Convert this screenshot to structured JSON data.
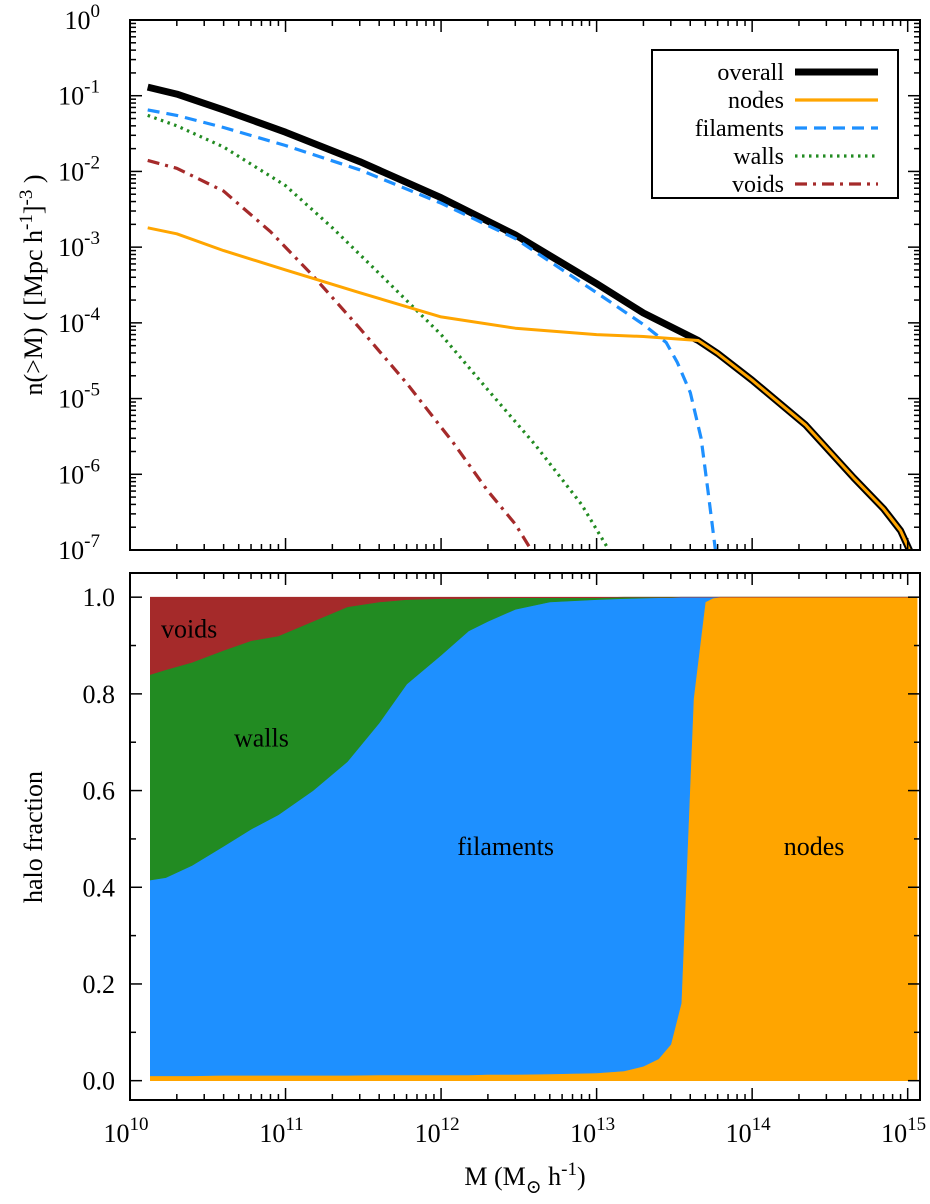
{
  "chart_data": [
    {
      "type": "line",
      "panel": "top",
      "xscale": "log",
      "yscale": "log",
      "xlim": [
        10000000000.0,
        1200000000000000.0
      ],
      "ylim": [
        1e-07,
        1
      ],
      "ylabel": {
        "main": "n(>M)  ( [Mpc h",
        "sup1": "-1",
        "mid": "]",
        "sup2": "-3",
        "end": " )"
      },
      "ytick_labels": [
        {
          "v": 1.0,
          "base": "10",
          "exp": "0"
        },
        {
          "v": 0.1,
          "base": "10",
          "exp": "-1"
        },
        {
          "v": 0.01,
          "base": "10",
          "exp": "-2"
        },
        {
          "v": 0.001,
          "base": "10",
          "exp": "-3"
        },
        {
          "v": 0.0001,
          "base": "10",
          "exp": "-4"
        },
        {
          "v": 1e-05,
          "base": "10",
          "exp": "-5"
        },
        {
          "v": 1e-06,
          "base": "10",
          "exp": "-6"
        },
        {
          "v": 1e-07,
          "base": "10",
          "exp": "-7"
        }
      ],
      "legend_position": "top-right",
      "series": [
        {
          "name": "overall",
          "color": "#000000",
          "dash": "solid",
          "x": [
            13000000000.0,
            20000000000.0,
            40000000000.0,
            100000000000.0,
            300000000000.0,
            1000000000000.0,
            3000000000000.0,
            10000000000000.0,
            20000000000000.0,
            45000000000000.0,
            60000000000000.0,
            100000000000000.0,
            220000000000000.0,
            450000000000000.0,
            700000000000000.0,
            900000000000000.0,
            1050000000000000.0
          ],
          "y": [
            0.13,
            0.105,
            0.065,
            0.033,
            0.0135,
            0.0045,
            0.00145,
            0.00033,
            0.000135,
            5.85e-05,
            3.95e-05,
            1.75e-05,
            4.5e-06,
            9e-07,
            3.5e-07,
            1.8e-07,
            9e-08
          ]
        },
        {
          "name": "nodes",
          "color": "#ffa500",
          "dash": "solid",
          "x": [
            13000000000.0,
            20000000000.0,
            40000000000.0,
            100000000000.0,
            300000000000.0,
            1000000000000.0,
            3000000000000.0,
            10000000000000.0,
            20000000000000.0,
            45000000000000.0,
            60000000000000.0,
            100000000000000.0,
            220000000000000.0,
            450000000000000.0,
            700000000000000.0,
            900000000000000.0,
            1050000000000000.0
          ],
          "y": [
            0.0018,
            0.0015,
            0.0009,
            0.0005,
            0.00025,
            0.00012,
            8.5e-05,
            7e-05,
            6.6e-05,
            5.85e-05,
            3.95e-05,
            1.75e-05,
            4.5e-06,
            9e-07,
            3.5e-07,
            1.8e-07,
            9e-08
          ]
        },
        {
          "name": "filaments",
          "color": "#1e90ff",
          "dash": "dashed",
          "x": [
            13000000000.0,
            20000000000.0,
            40000000000.0,
            100000000000.0,
            300000000000.0,
            1000000000000.0,
            3000000000000.0,
            10000000000000.0,
            20000000000000.0,
            28000000000000.0,
            33000000000000.0,
            40000000000000.0,
            47000000000000.0,
            52000000000000.0,
            58000000000000.0
          ],
          "y": [
            0.065,
            0.055,
            0.038,
            0.022,
            0.0105,
            0.0038,
            0.0013,
            0.00025,
            9.5e-05,
            5.5e-05,
            3e-05,
            1.2e-05,
            3e-06,
            6e-07,
            1e-07
          ]
        },
        {
          "name": "walls",
          "color": "#228b22",
          "dash": "dotted",
          "x": [
            13000000000.0,
            20000000000.0,
            40000000000.0,
            100000000000.0,
            200000000000.0,
            400000000000.0,
            1000000000000.0,
            2000000000000.0,
            4000000000000.0,
            8000000000000.0,
            12000000000000.0
          ],
          "y": [
            0.055,
            0.04,
            0.021,
            0.0065,
            0.0018,
            0.00045,
            7e-05,
            1.3e-05,
            2.5e-06,
            4e-07,
            1e-07
          ]
        },
        {
          "name": "voids",
          "color": "#a52a2a",
          "dash": "dashdot",
          "x": [
            13000000000.0,
            20000000000.0,
            40000000000.0,
            80000000000.0,
            150000000000.0,
            300000000000.0,
            600000000000.0,
            1200000000000.0,
            2000000000000.0,
            3000000000000.0,
            3800000000000.0
          ],
          "y": [
            0.014,
            0.011,
            0.0055,
            0.0016,
            0.00042,
            8.5e-05,
            1.6e-05,
            2.6e-06,
            6e-07,
            2.2e-07,
            1e-07
          ]
        }
      ]
    },
    {
      "type": "area",
      "panel": "bottom",
      "stacked": true,
      "xscale": "log",
      "xlim": [
        10000000000.0,
        1200000000000000.0
      ],
      "ylim": [
        -0.04,
        1.05
      ],
      "xlabel": {
        "pre": "M (M",
        "sub": "⊙",
        "post": " h",
        "sup": "-1",
        "end": ")"
      },
      "ylabel": "halo fraction",
      "ytick_labels": [
        "0.0",
        "0.2",
        "0.4",
        "0.6",
        "0.8",
        "1.0"
      ],
      "ytick_values": [
        0,
        0.2,
        0.4,
        0.6,
        0.8,
        1.0
      ],
      "xtick_labels": [
        {
          "v": 10000000000.0,
          "base": "10",
          "exp": "10"
        },
        {
          "v": 100000000000.0,
          "base": "10",
          "exp": "11"
        },
        {
          "v": 1000000000000.0,
          "base": "10",
          "exp": "12"
        },
        {
          "v": 10000000000000.0,
          "base": "10",
          "exp": "13"
        },
        {
          "v": 100000000000000.0,
          "base": "10",
          "exp": "14"
        },
        {
          "v": 1000000000000000.0,
          "base": "10",
          "exp": "15"
        }
      ],
      "x": [
        13500000000.0,
        17000000000.0,
        25000000000.0,
        40000000000.0,
        60000000000.0,
        90000000000.0,
        150000000000.0,
        250000000000.0,
        400000000000.0,
        600000000000.0,
        1000000000000.0,
        1500000000000.0,
        2000000000000.0,
        3000000000000.0,
        5000000000000.0,
        10000000000000.0,
        15000000000000.0,
        20000000000000.0,
        25000000000000.0,
        30000000000000.0,
        35000000000000.0,
        42000000000000.0,
        50000000000000.0,
        56000000000000.0,
        62000000000000.0,
        80000000000000.0,
        120000000000000.0,
        200000000000000.0,
        500000000000000.0,
        1000000000000000.0,
        1150000000000000.0
      ],
      "series": [
        {
          "name": "nodes",
          "color": "#ffa500",
          "values": [
            0.01,
            0.01,
            0.01,
            0.011,
            0.011,
            0.011,
            0.011,
            0.011,
            0.012,
            0.012,
            0.012,
            0.012,
            0.013,
            0.013,
            0.014,
            0.016,
            0.02,
            0.03,
            0.045,
            0.075,
            0.16,
            0.79,
            0.99,
            0.998,
            1.0,
            1.0,
            1.0,
            1.0,
            1.0,
            1.0,
            1.0
          ]
        },
        {
          "name": "filaments",
          "color": "#1e90ff",
          "values": [
            0.405,
            0.41,
            0.435,
            0.474,
            0.509,
            0.539,
            0.589,
            0.649,
            0.728,
            0.808,
            0.868,
            0.918,
            0.937,
            0.962,
            0.976,
            0.979,
            0.977,
            0.968,
            0.954,
            0.924,
            0.84,
            0.21,
            0.01,
            0.002,
            0.0,
            0.0,
            0.0,
            0.0,
            0.0,
            0.0,
            0.0
          ]
        },
        {
          "name": "walls",
          "color": "#228b22",
          "values": [
            0.425,
            0.43,
            0.42,
            0.405,
            0.39,
            0.37,
            0.35,
            0.32,
            0.25,
            0.175,
            0.117,
            0.067,
            0.048,
            0.024,
            0.009,
            0.004,
            0.003,
            0.002,
            0.001,
            0.001,
            0.0,
            0.0,
            0.0,
            0.0,
            0.0,
            0.0,
            0.0,
            0.0,
            0.0,
            0.0,
            0.0
          ]
        },
        {
          "name": "voids",
          "color": "#a52a2a",
          "values": [
            0.16,
            0.15,
            0.135,
            0.11,
            0.09,
            0.08,
            0.05,
            0.02,
            0.01,
            0.005,
            0.003,
            0.003,
            0.002,
            0.001,
            0.001,
            0.001,
            0.0,
            0.0,
            0.0,
            0.0,
            0.0,
            0.0,
            0.0,
            0.0,
            0.0,
            0.0,
            0.0,
            0.0,
            0.0,
            0.0,
            0.0
          ]
        }
      ],
      "annotations": [
        {
          "text": "voids",
          "x": 24000000000.0,
          "y": 0.935
        },
        {
          "text": "walls",
          "x": 70000000000.0,
          "y": 0.71
        },
        {
          "text": "filaments",
          "x": 2600000000000.0,
          "y": 0.485
        },
        {
          "text": "nodes",
          "x": 250000000000000.0,
          "y": 0.485
        }
      ]
    }
  ]
}
